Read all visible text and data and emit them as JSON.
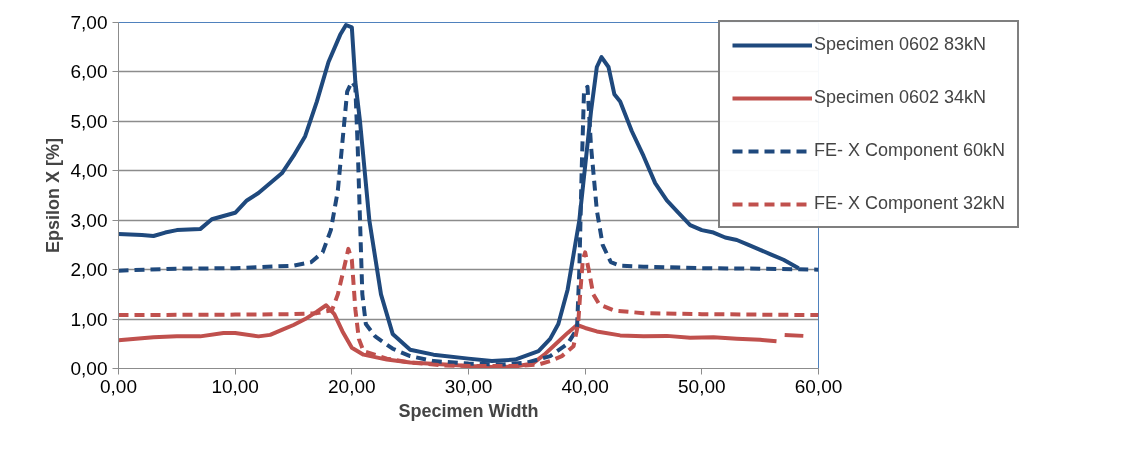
{
  "chart_data": {
    "type": "line",
    "xlabel": "Specimen Width",
    "ylabel": "Epsilon X [%]",
    "xlim": [
      0,
      60
    ],
    "ylim": [
      0,
      7
    ],
    "xticks": [
      {
        "value": 0,
        "label": "0,00"
      },
      {
        "value": 10,
        "label": "10,00"
      },
      {
        "value": 20,
        "label": "20,00"
      },
      {
        "value": 30,
        "label": "30,00"
      },
      {
        "value": 40,
        "label": "40,00"
      },
      {
        "value": 50,
        "label": "50,00"
      },
      {
        "value": 60,
        "label": "60,00"
      }
    ],
    "yticks": [
      {
        "value": 0,
        "label": "0,00"
      },
      {
        "value": 1,
        "label": "1,00"
      },
      {
        "value": 2,
        "label": "2,00"
      },
      {
        "value": 3,
        "label": "3,00"
      },
      {
        "value": 4,
        "label": "4,00"
      },
      {
        "value": 5,
        "label": "5,00"
      },
      {
        "value": 6,
        "label": "6,00"
      },
      {
        "value": 7,
        "label": "7,00"
      }
    ],
    "grid": "y",
    "legend": "top right",
    "marker": "none",
    "series": [
      {
        "name": "Specimen 0602 83kN",
        "color": "#1f497d",
        "line_style": "solid",
        "x": [
          0,
          2,
          3,
          4,
          5,
          7,
          8,
          10,
          11,
          12,
          14,
          15,
          16,
          17,
          18,
          19,
          19.5,
          20,
          20.3,
          20.7,
          21.5,
          22.5,
          23.5,
          25,
          27,
          30,
          32,
          34,
          36,
          37,
          37.7,
          38.5,
          39.5,
          40.5,
          41,
          41.4,
          42,
          42.5,
          43,
          44,
          45,
          46,
          47,
          48,
          49,
          50,
          51,
          52,
          53,
          54,
          55,
          56,
          57,
          58.3
        ],
        "values": [
          2.72,
          2.7,
          2.68,
          2.75,
          2.8,
          2.82,
          3.02,
          3.15,
          3.4,
          3.55,
          3.95,
          4.3,
          4.7,
          5.4,
          6.2,
          6.75,
          6.95,
          6.9,
          5.8,
          5.0,
          3.0,
          1.5,
          0.7,
          0.38,
          0.28,
          0.2,
          0.15,
          0.18,
          0.35,
          0.6,
          0.9,
          1.6,
          3.0,
          5.2,
          6.1,
          6.3,
          6.1,
          5.55,
          5.4,
          4.8,
          4.3,
          3.75,
          3.4,
          3.15,
          2.9,
          2.8,
          2.75,
          2.65,
          2.6,
          2.5,
          2.4,
          2.3,
          2.2,
          2.03
        ]
      },
      {
        "name": "Specimen 0602 34kN",
        "color": "#c0504d",
        "line_style": "solid",
        "x": [
          0,
          3,
          5,
          7,
          9,
          10,
          12,
          13,
          14,
          15,
          16,
          17,
          17.8,
          18.5,
          19.2,
          20,
          21,
          23,
          25,
          28,
          30,
          32,
          34,
          35.5,
          36.5,
          37.5,
          38.5,
          39.3,
          40,
          41,
          43,
          45,
          47,
          49,
          51,
          53,
          55,
          56.4,
          57,
          57.1,
          58.7
        ],
        "values": [
          0.57,
          0.63,
          0.65,
          0.65,
          0.72,
          0.72,
          0.65,
          0.68,
          0.78,
          0.88,
          1.0,
          1.15,
          1.28,
          1.1,
          0.75,
          0.42,
          0.28,
          0.18,
          0.12,
          0.08,
          0.05,
          0.03,
          0.04,
          0.1,
          0.28,
          0.5,
          0.72,
          0.88,
          0.82,
          0.75,
          0.67,
          0.65,
          0.66,
          0.62,
          0.63,
          0.6,
          0.58,
          0.55,
          null,
          0.68,
          0.66
        ]
      },
      {
        "name": "FE- X Component 60kN",
        "color": "#1f497d",
        "line_style": "dashed",
        "x": [
          0,
          5,
          10,
          15,
          16.5,
          17.5,
          18.2,
          18.8,
          19.2,
          19.6,
          20,
          20.3,
          20.5,
          20.7,
          20.9,
          21.2,
          22,
          23.5,
          25,
          27,
          30,
          33,
          35,
          37,
          38.5,
          39.3,
          39.5,
          39.7,
          39.9,
          40.2,
          40.5,
          41,
          41.5,
          42.2,
          43,
          45,
          50,
          55,
          60
        ],
        "values": [
          1.98,
          2.02,
          2.03,
          2.08,
          2.15,
          2.35,
          2.8,
          3.6,
          4.6,
          5.6,
          5.8,
          5.7,
          4.5,
          3.0,
          1.5,
          0.9,
          0.65,
          0.4,
          0.25,
          0.15,
          0.1,
          0.08,
          0.12,
          0.25,
          0.5,
          0.8,
          2.0,
          4.0,
          5.6,
          5.7,
          4.5,
          3.2,
          2.5,
          2.15,
          2.08,
          2.06,
          2.03,
          2.02,
          2.0
        ]
      },
      {
        "name": "FE- X Component 32kN",
        "color": "#c0504d",
        "line_style": "dashed",
        "x": [
          0,
          10,
          15,
          17,
          18.3,
          18.8,
          19.3,
          19.7,
          20,
          20.3,
          20.6,
          21,
          23,
          25,
          28,
          31,
          34,
          36,
          37,
          38,
          39,
          39.4,
          39.6,
          39.8,
          40,
          40.3,
          40.7,
          41.2,
          42.5,
          45,
          50,
          55,
          60
        ],
        "values": [
          1.08,
          1.09,
          1.1,
          1.12,
          1.18,
          1.5,
          2.0,
          2.42,
          2.2,
          1.2,
          0.6,
          0.35,
          0.2,
          0.12,
          0.06,
          0.05,
          0.05,
          0.08,
          0.15,
          0.25,
          0.45,
          0.9,
          1.6,
          2.2,
          2.35,
          2.0,
          1.5,
          1.3,
          1.17,
          1.12,
          1.1,
          1.09,
          1.08
        ]
      }
    ]
  }
}
